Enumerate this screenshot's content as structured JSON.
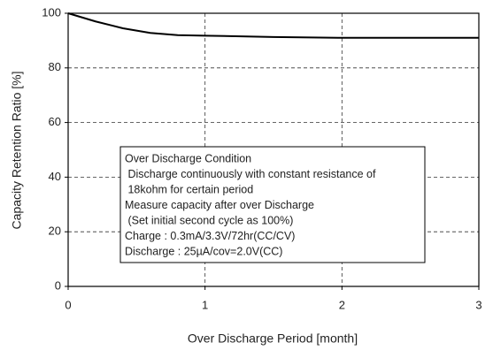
{
  "chart_data": {
    "type": "line",
    "x_label": "Over Discharge Period [month]",
    "y_label": "Capacity Retention Ratio [%]",
    "x": [
      0,
      0.2,
      0.4,
      0.6,
      0.8,
      1,
      1.5,
      2,
      2.5,
      3
    ],
    "series": [
      {
        "name": "Capacity retention",
        "color": "#000000",
        "values": [
          100,
          97,
          94.5,
          92.8,
          92,
          91.8,
          91.3,
          91,
          91,
          91
        ]
      }
    ],
    "xlim": [
      0,
      3
    ],
    "xticks": [
      0,
      1,
      2,
      3
    ],
    "ylim": [
      0,
      100
    ],
    "yticks": [
      0,
      20,
      40,
      60,
      80,
      100
    ],
    "grid": true,
    "annotation": [
      "Over Discharge Condition",
      " Discharge continuously with constant resistance of",
      " 18kohm for certain period",
      "Measure capacity after over Discharge",
      " (Set initial second cycle as 100%)",
      "Charge : 0.3mA/3.3V/72hr(CC/CV)",
      "Discharge : 25µA/cov=2.0V(CC)"
    ]
  }
}
